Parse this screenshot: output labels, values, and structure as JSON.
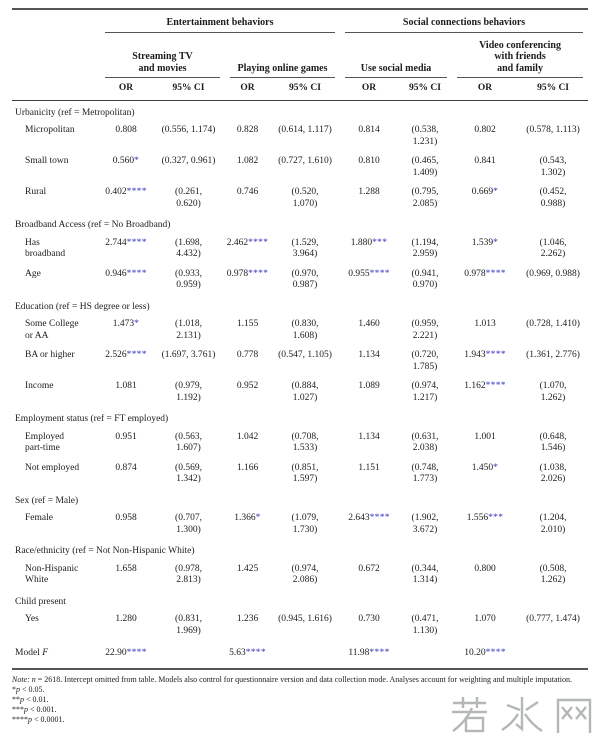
{
  "colors": {
    "significance_star": "#3535bd",
    "rule_line": "#555555",
    "body_text": "#1c1c1c",
    "watermark_gray": "#b3b8b7"
  },
  "table": {
    "or_header": "OR",
    "ci_header": "95% CI",
    "groups": [
      {
        "label": "Entertainment behaviors",
        "subs": [
          {
            "label": "Streaming TV\nand movies"
          },
          {
            "label": "Playing online games"
          }
        ]
      },
      {
        "label": "Social connections behaviors",
        "subs": [
          {
            "label": "Use social media"
          },
          {
            "label": "Video conferencing\nwith friends\nand family"
          }
        ]
      }
    ],
    "rows": [
      {
        "type": "section",
        "label": "Urbanicity (ref = Metropolitan)"
      },
      {
        "type": "data",
        "label": "Micropolitan",
        "cells": [
          {
            "or": "0.808",
            "stars": "",
            "ci": "(0.556, 1.174)"
          },
          {
            "or": "0.828",
            "stars": "",
            "ci": "(0.614, 1.117)"
          },
          {
            "or": "0.814",
            "stars": "",
            "ci": "(0.538,\n1.231)"
          },
          {
            "or": "0.802",
            "stars": "",
            "ci": "(0.578, 1.113)"
          }
        ]
      },
      {
        "type": "data",
        "label": "Small town",
        "cells": [
          {
            "or": "0.560",
            "stars": "*",
            "ci": "(0.327, 0.961)"
          },
          {
            "or": "1.082",
            "stars": "",
            "ci": "(0.727, 1.610)"
          },
          {
            "or": "0.810",
            "stars": "",
            "ci": "(0.465,\n1.409)"
          },
          {
            "or": "0.841",
            "stars": "",
            "ci": "(0.543,\n1.302)"
          }
        ]
      },
      {
        "type": "data",
        "label": "Rural",
        "cells": [
          {
            "or": "0.402",
            "stars": "****",
            "ci": "(0.261,\n0.620)"
          },
          {
            "or": "0.746",
            "stars": "",
            "ci": "(0.520,\n1.070)"
          },
          {
            "or": "1.288",
            "stars": "",
            "ci": "(0.795,\n2.085)"
          },
          {
            "or": "0.669",
            "stars": "*",
            "ci": "(0.452,\n0.988)"
          }
        ]
      },
      {
        "type": "section",
        "label": "Broadband Access (ref = No Broadband)"
      },
      {
        "type": "data",
        "label": "Has\nbroadband",
        "cells": [
          {
            "or": "2.744",
            "stars": "****",
            "ci": "(1.698,\n4.432)"
          },
          {
            "or": "2.462",
            "stars": "****",
            "ci": "(1.529,\n3.964)"
          },
          {
            "or": "1.880",
            "stars": "***",
            "ci": "(1.194,\n2.959)"
          },
          {
            "or": "1.539",
            "stars": "*",
            "ci": "(1.046,\n2.262)"
          }
        ]
      },
      {
        "type": "data",
        "label": "Age",
        "cells": [
          {
            "or": "0.946",
            "stars": "****",
            "ci": "(0.933,\n0.959)"
          },
          {
            "or": "0.978",
            "stars": "****",
            "ci": "(0.970,\n0.987)"
          },
          {
            "or": "0.955",
            "stars": "****",
            "ci": "(0.941,\n0.970)"
          },
          {
            "or": "0.978",
            "stars": "****",
            "ci": "(0.969, 0.988)"
          }
        ]
      },
      {
        "type": "section",
        "label": "Education (ref = HS degree or less)"
      },
      {
        "type": "data",
        "label": "Some College\nor AA",
        "cells": [
          {
            "or": "1.473",
            "stars": "*",
            "ci": "(1.018,\n2.131)"
          },
          {
            "or": "1.155",
            "stars": "",
            "ci": "(0.830,\n1.608)"
          },
          {
            "or": "1.460",
            "stars": "",
            "ci": "(0.959,\n2.221)"
          },
          {
            "or": "1.013",
            "stars": "",
            "ci": "(0.728, 1.410)"
          }
        ]
      },
      {
        "type": "data",
        "label": "BA or higher",
        "cells": [
          {
            "or": "2.526",
            "stars": "****",
            "ci": "(1.697, 3.761)"
          },
          {
            "or": "0.778",
            "stars": "",
            "ci": "(0.547, 1.105)"
          },
          {
            "or": "1.134",
            "stars": "",
            "ci": "(0.720,\n1.785)"
          },
          {
            "or": "1.943",
            "stars": "****",
            "ci": "(1.361, 2.776)"
          }
        ]
      },
      {
        "type": "data",
        "label": "Income",
        "cells": [
          {
            "or": "1.081",
            "stars": "",
            "ci": "(0.979,\n1.192)"
          },
          {
            "or": "0.952",
            "stars": "",
            "ci": "(0.884,\n1.027)"
          },
          {
            "or": "1.089",
            "stars": "",
            "ci": "(0.974,\n1.217)"
          },
          {
            "or": "1.162",
            "stars": "****",
            "ci": "(1.070,\n1.262)"
          }
        ]
      },
      {
        "type": "section",
        "label": "Employment status (ref = FT employed)"
      },
      {
        "type": "data",
        "label": "Employed\npart-time",
        "cells": [
          {
            "or": "0.951",
            "stars": "",
            "ci": "(0.563,\n1.607)"
          },
          {
            "or": "1.042",
            "stars": "",
            "ci": "(0.708,\n1.533)"
          },
          {
            "or": "1.134",
            "stars": "",
            "ci": "(0.631,\n2.038)"
          },
          {
            "or": "1.001",
            "stars": "",
            "ci": "(0.648,\n1.546)"
          }
        ]
      },
      {
        "type": "data",
        "label": "Not employed",
        "cells": [
          {
            "or": "0.874",
            "stars": "",
            "ci": "(0.569,\n1.342)"
          },
          {
            "or": "1.166",
            "stars": "",
            "ci": "(0.851,\n1.597)"
          },
          {
            "or": "1.151",
            "stars": "",
            "ci": "(0.748,\n1.773)"
          },
          {
            "or": "1.450",
            "stars": "*",
            "ci": "(1.038,\n2.026)"
          }
        ]
      },
      {
        "type": "section",
        "label": "Sex (ref = Male)"
      },
      {
        "type": "data",
        "label": "Female",
        "cells": [
          {
            "or": "0.958",
            "stars": "",
            "ci": "(0.707,\n1.300)"
          },
          {
            "or": "1.366",
            "stars": "*",
            "ci": "(1.079,\n1.730)"
          },
          {
            "or": "2.643",
            "stars": "****",
            "ci": "(1.902,\n3.672)"
          },
          {
            "or": "1.556",
            "stars": "***",
            "ci": "(1.204,\n2.010)"
          }
        ]
      },
      {
        "type": "section",
        "label": "Race/ethnicity (ref = Not Non-Hispanic White)"
      },
      {
        "type": "data",
        "label": "Non-Hispanic\nWhite",
        "cells": [
          {
            "or": "1.658",
            "stars": "",
            "ci": "(0.978,\n2.813)"
          },
          {
            "or": "1.425",
            "stars": "",
            "ci": "(0.974,\n2.086)"
          },
          {
            "or": "0.672",
            "stars": "",
            "ci": "(0.344,\n1.314)"
          },
          {
            "or": "0.800",
            "stars": "",
            "ci": "(0.508,\n1.262)"
          }
        ]
      },
      {
        "type": "section",
        "label": "Child present"
      },
      {
        "type": "data",
        "label": "Yes",
        "cells": [
          {
            "or": "1.280",
            "stars": "",
            "ci": "(0.831,\n1.969)"
          },
          {
            "or": "1.236",
            "stars": "",
            "ci": "(0.945, 1.616)"
          },
          {
            "or": "0.730",
            "stars": "",
            "ci": "(0.471,\n1.130)"
          },
          {
            "or": "1.070",
            "stars": "",
            "ci": "(0.777, 1.474)"
          }
        ]
      },
      {
        "type": "model",
        "label_prefix": "Model ",
        "label_italic": "F",
        "cells": [
          {
            "or": "22.90",
            "stars": "****"
          },
          {
            "or": "5.63",
            "stars": "****"
          },
          {
            "or": "11.98",
            "stars": "****"
          },
          {
            "or": "10.20",
            "stars": "****"
          }
        ]
      }
    ]
  },
  "notes": {
    "note_label": "Note: ",
    "n_var": "n",
    "note_rest": " = 2618. Intercept omitted from table. Models also control for questionnaire version and data collection mode. Analyses account for weighting and multiple imputation.",
    "sig": [
      {
        "stars": "*",
        "var": "p",
        "rest": " < 0.05."
      },
      {
        "stars": "**",
        "var": "p",
        "rest": " < 0.01."
      },
      {
        "stars": "***",
        "var": "p",
        "rest": " < 0.001."
      },
      {
        "stars": "****",
        "var": "p",
        "rest": " < 0.0001."
      }
    ]
  },
  "watermark": {
    "text": "若水网"
  }
}
